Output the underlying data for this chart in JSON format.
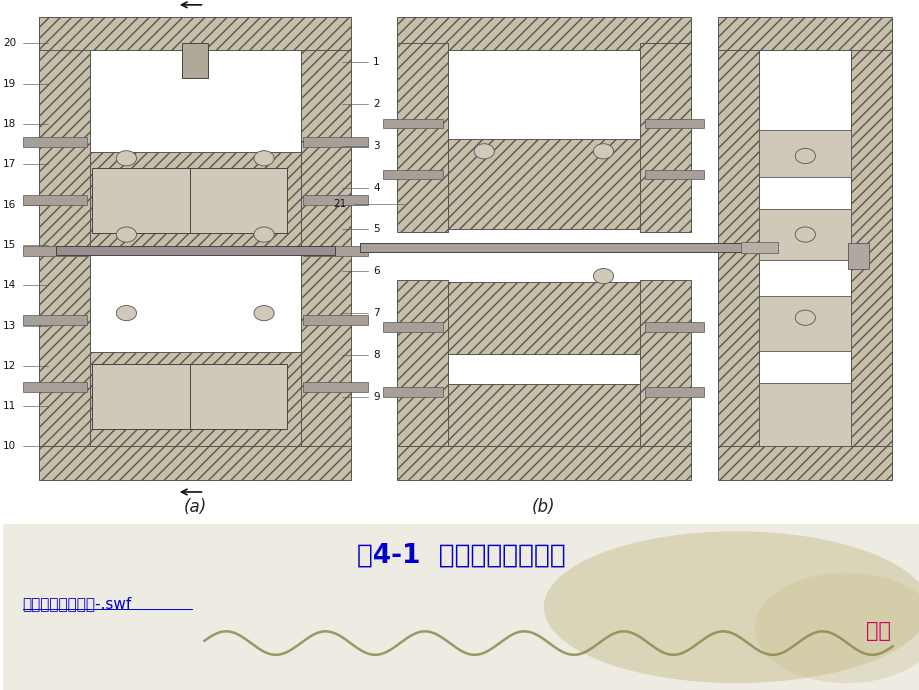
{
  "bg_color": "#ffffff",
  "title": "图4-1  注塑模的典型结构",
  "title_color": "#0000cc",
  "title_fontsize": 19,
  "link_text": "注塑成型分解动画-.swf",
  "link_color": "#0000cc",
  "link_fontsize": 11,
  "return_text": "返回",
  "return_color": "#cc0066",
  "return_fontsize": 15,
  "label_a": "(a)",
  "label_b": "(b)",
  "label_fontsize": 12,
  "hatch_color": "#c8bfa8",
  "gray_fill": "#d0c8b8",
  "rod_color": "#a8a098",
  "bolt_color": "#d0c8b8",
  "wave_color": "#8a8a50",
  "blob_color": "#c8c090",
  "numbers_left": [
    "20",
    "19",
    "18",
    "17",
    "16",
    "15",
    "14",
    "13",
    "12",
    "11",
    "10"
  ],
  "numbers_right": [
    "1",
    "2",
    "3",
    "4",
    "5",
    "6",
    "7",
    "8",
    "9"
  ],
  "number21": "21"
}
